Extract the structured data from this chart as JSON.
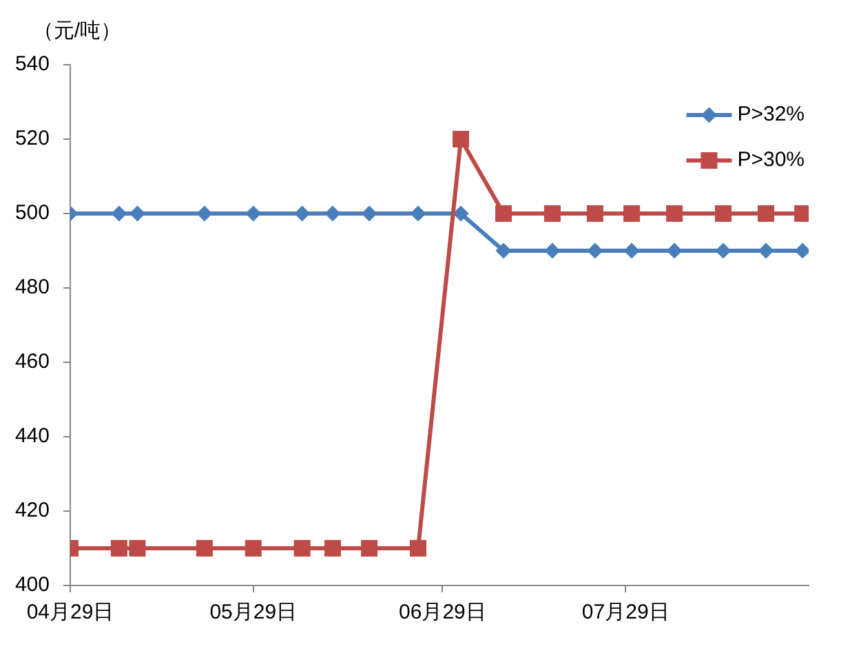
{
  "chart_data": {
    "type": "line",
    "ylabel": "（元/吨）",
    "x": [
      "--04-29",
      "--05-07",
      "--05-10",
      "--05-21",
      "--05-29",
      "--06-06",
      "--06-11",
      "--06-17",
      "--06-25",
      "--07-02",
      "--07-09",
      "--07-17",
      "--07-24",
      "--07-30",
      "--08-06",
      "--08-14",
      "--08-21",
      "--08-27"
    ],
    "series": [
      {
        "name": "P>32%",
        "color": "#4a7ebb",
        "marker": "diamond",
        "values": [
          500,
          500,
          500,
          500,
          500,
          500,
          500,
          500,
          500,
          500,
          490,
          490,
          490,
          490,
          490,
          490,
          490,
          490
        ]
      },
      {
        "name": "P>30%",
        "color": "#be4b48",
        "marker": "square",
        "values": [
          410,
          410,
          410,
          410,
          410,
          410,
          410,
          410,
          410,
          520,
          500,
          500,
          500,
          500,
          500,
          500,
          500,
          500
        ]
      }
    ],
    "xlim": [
      "--04-29",
      "--08-28"
    ],
    "xticks": [
      {
        "value": "--04-29",
        "label": "04月29日"
      },
      {
        "value": "--05-29",
        "label": "05月29日"
      },
      {
        "value": "--06-29",
        "label": "06月29日"
      },
      {
        "value": "--07-29",
        "label": "07月29日"
      }
    ],
    "ylim": [
      400,
      540
    ],
    "yticks": [
      400,
      420,
      440,
      460,
      480,
      500,
      520,
      540
    ],
    "legend": "top right"
  }
}
